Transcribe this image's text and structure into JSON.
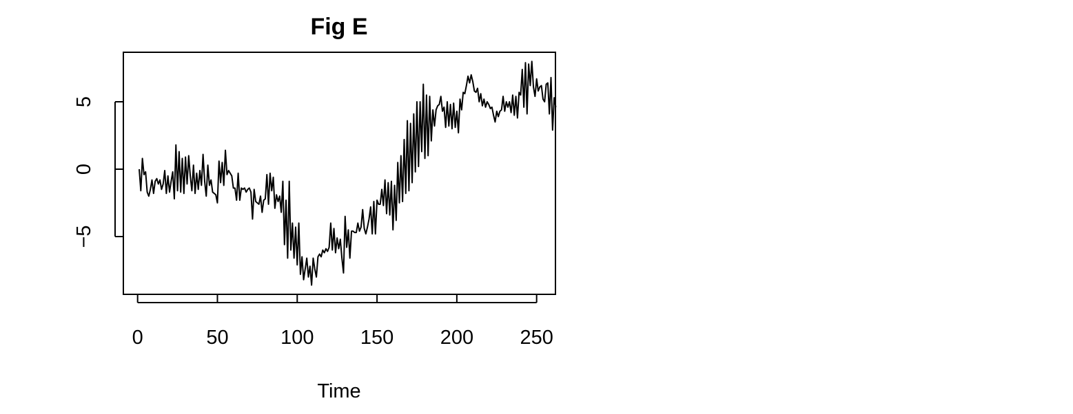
{
  "chart_data": {
    "type": "line",
    "title": "Fig E",
    "xlabel": "Time",
    "ylabel": "",
    "xlim": [
      1,
      251
    ],
    "ylim": [
      -9,
      9
    ],
    "x_ticks": [
      0,
      50,
      100,
      150,
      200,
      250
    ],
    "x_tick_labels": [
      "0",
      "50",
      "100",
      "150",
      "200",
      "250"
    ],
    "y_ticks": [
      -5,
      0,
      5
    ],
    "y_tick_labels": [
      "−5",
      "0",
      "5"
    ],
    "grid": false,
    "legend": "none",
    "line_color": "#000000",
    "series": [
      {
        "x_start": 1,
        "x_step": 1,
        "values": [
          0.0,
          -1.6,
          0.8,
          -0.4,
          -0.2,
          -1.7,
          -2.0,
          -1.5,
          -0.8,
          -1.8,
          -0.9,
          -0.7,
          -1.1,
          -0.8,
          -1.5,
          -1.1,
          -0.1,
          -1.8,
          -0.5,
          -1.7,
          -0.9,
          -0.2,
          -2.2,
          1.8,
          -1.6,
          1.3,
          -1.7,
          0.8,
          -1.8,
          0.9,
          -1.1,
          1.0,
          -0.5,
          -1.6,
          0.3,
          -1.8,
          -0.3,
          -1.5,
          -0.1,
          -1.2,
          1.1,
          -0.9,
          -2.0,
          0.3,
          -1.2,
          -0.8,
          -1.7,
          -1.8,
          -1.9,
          -2.5,
          0.6,
          -1.0,
          0.5,
          -1.2,
          1.4,
          -0.4,
          -0.1,
          -0.3,
          -0.5,
          -1.4,
          -1.4,
          -2.3,
          -0.3,
          -2.3,
          -1.4,
          -1.5,
          -1.4,
          -1.7,
          -1.5,
          -1.4,
          -1.7,
          -3.7,
          -1.5,
          -2.4,
          -2.5,
          -2.6,
          -2.0,
          -3.2,
          -2.3,
          -2.2,
          -0.4,
          -2.6,
          -0.3,
          -1.6,
          -0.6,
          -2.9,
          -1.9,
          -2.4,
          -2.0,
          -3.2,
          -0.9,
          -5.6,
          -2.3,
          -6.6,
          -0.9,
          -6.0,
          -4.0,
          -6.6,
          -4.3,
          -7.1,
          -4.0,
          -7.8,
          -6.5,
          -8.2,
          -7.4,
          -6.6,
          -8.0,
          -7.2,
          -8.6,
          -6.6,
          -7.4,
          -8.0,
          -6.5,
          -6.3,
          -6.5,
          -6.0,
          -6.2,
          -5.9,
          -6.1,
          -5.8,
          -4.0,
          -6.0,
          -4.4,
          -6.2,
          -5.1,
          -5.9,
          -5.2,
          -6.6,
          -7.7,
          -3.5,
          -5.8,
          -4.5,
          -6.6,
          -4.6,
          -4.6,
          -4.7,
          -4.7,
          -4.0,
          -4.6,
          -4.3,
          -3.0,
          -4.4,
          -4.8,
          -4.3,
          -3.7,
          -2.8,
          -4.8,
          -2.4,
          -4.8,
          -2.3,
          -2.6,
          -2.6,
          -1.5,
          -2.7,
          -0.8,
          -3.3,
          -1.0,
          -3.4,
          -0.9,
          -4.5,
          -1.2,
          -3.8,
          0.5,
          -2.5,
          1.0,
          -2.4,
          2.2,
          -1.8,
          3.6,
          -1.6,
          3.4,
          -1.0,
          4.1,
          -0.2,
          5.0,
          0.2,
          5.0,
          1.3,
          6.3,
          0.8,
          5.5,
          1.0,
          5.4,
          2.1,
          4.4,
          3.2,
          4.4,
          4.7,
          4.8,
          5.4,
          4.3,
          4.6,
          3.1,
          5.0,
          3.2,
          4.8,
          3.0,
          4.9,
          3.1,
          4.3,
          2.7,
          5.2,
          4.4,
          5.7,
          5.6,
          6.2,
          6.9,
          6.4,
          7.0,
          6.5,
          5.8,
          5.7,
          6.0,
          5.0,
          5.6,
          4.7,
          5.2,
          4.6,
          5.0,
          4.8,
          4.5,
          4.6,
          4.0,
          3.5,
          4.3,
          3.9,
          4.3,
          4.4,
          5.4,
          4.3,
          5.0,
          4.6,
          5.0,
          4.2,
          5.5,
          4.0,
          5.4,
          3.8,
          5.7,
          5.5,
          7.4,
          4.6,
          7.9,
          4.1,
          7.8,
          6.2,
          8.0,
          6.1,
          5.4,
          6.7,
          5.8,
          6.1,
          6.2,
          5.2,
          5.0,
          6.3,
          6.4,
          4.1,
          6.8,
          2.9,
          5.3,
          4.6
        ]
      }
    ]
  }
}
